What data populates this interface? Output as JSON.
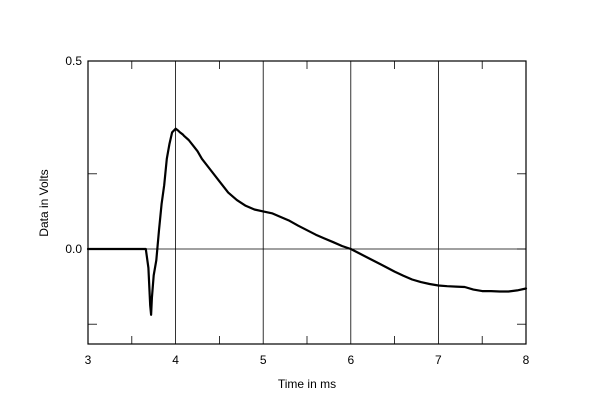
{
  "chart_data": {
    "type": "line",
    "title": "",
    "xlabel": "Time in ms",
    "ylabel": "Data in Volts",
    "xlim": [
      3,
      8
    ],
    "ylim": [
      -0.2,
      0.5
    ],
    "grid": true,
    "x_ticks": [
      3,
      4,
      5,
      6,
      7,
      8
    ],
    "x_tick_labels": [
      "3",
      "4",
      "5",
      "6",
      "7",
      "8"
    ],
    "y_ticks": [
      -0.2,
      0.0,
      0.2,
      0.5
    ],
    "y_tick_labels": [
      "",
      "0.0",
      "",
      "0.5"
    ],
    "series": [
      {
        "color": "#000000",
        "x": [
          3.0,
          3.5,
          3.66,
          3.69,
          3.71,
          3.72,
          3.73,
          3.75,
          3.78,
          3.81,
          3.84,
          3.87,
          3.9,
          3.93,
          3.96,
          4.0,
          4.03,
          4.05,
          4.08,
          4.1,
          4.15,
          4.2,
          4.25,
          4.3,
          4.4,
          4.5,
          4.6,
          4.7,
          4.8,
          4.9,
          5.0,
          5.1,
          5.2,
          5.3,
          5.4,
          5.5,
          5.6,
          5.7,
          5.8,
          5.9,
          6.0,
          6.1,
          6.2,
          6.3,
          6.4,
          6.5,
          6.6,
          6.7,
          6.8,
          6.9,
          7.0,
          7.1,
          7.2,
          7.3,
          7.4,
          7.5,
          7.6,
          7.7,
          7.8,
          7.9,
          8.0
        ],
        "y": [
          0.0,
          0.0,
          0.0,
          -0.05,
          -0.15,
          -0.175,
          -0.13,
          -0.07,
          -0.03,
          0.05,
          0.12,
          0.17,
          0.24,
          0.28,
          0.31,
          0.32,
          0.315,
          0.31,
          0.305,
          0.3,
          0.29,
          0.275,
          0.26,
          0.24,
          0.21,
          0.18,
          0.15,
          0.13,
          0.115,
          0.105,
          0.1,
          0.095,
          0.085,
          0.075,
          0.062,
          0.05,
          0.038,
          0.028,
          0.018,
          0.008,
          0.0,
          -0.012,
          -0.024,
          -0.036,
          -0.048,
          -0.06,
          -0.071,
          -0.081,
          -0.088,
          -0.093,
          -0.097,
          -0.099,
          -0.1,
          -0.101,
          -0.108,
          -0.112,
          -0.112,
          -0.113,
          -0.113,
          -0.11,
          -0.105
        ]
      }
    ]
  }
}
